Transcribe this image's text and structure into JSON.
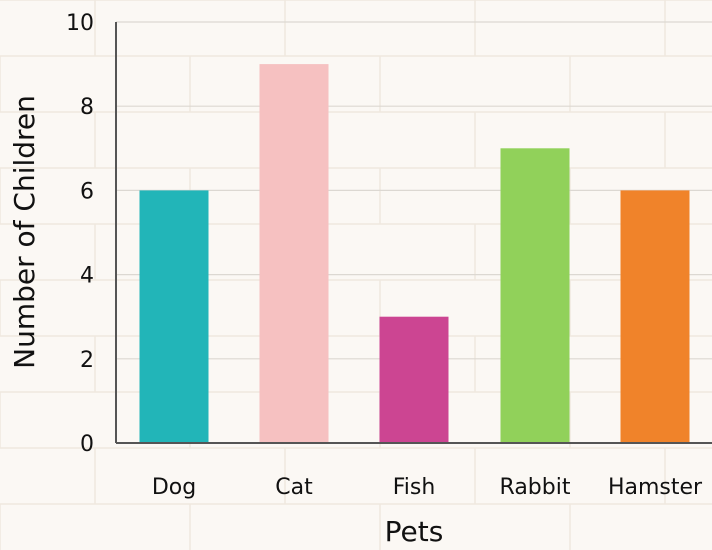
{
  "chart_data": {
    "type": "bar",
    "categories": [
      "Dog",
      "Cat",
      "Fish",
      "Rabbit",
      "Hamster"
    ],
    "values": [
      6,
      9,
      3,
      7,
      6
    ],
    "colors": [
      "#22b5b8",
      "#f6c1c1",
      "#cc4592",
      "#91d15a",
      "#f0832a"
    ],
    "xlabel": "Pets",
    "ylabel": "Number of Children",
    "ylim": [
      0,
      10
    ],
    "yticks": [
      0,
      2,
      4,
      6,
      8,
      10
    ],
    "grid": true
  }
}
